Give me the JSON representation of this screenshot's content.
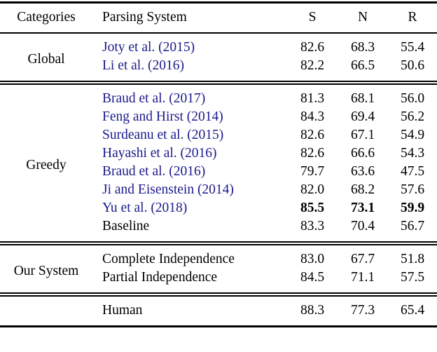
{
  "meta": {
    "background_color": "#ffffff",
    "text_color": "#000000",
    "citation_color": "#1a1a8c"
  },
  "table": {
    "columns": [
      "Categories",
      "Parsing System",
      "S",
      "N",
      "R"
    ],
    "sections": [
      {
        "category": "Global",
        "rows": [
          {
            "system": "Joty et al. (2015)",
            "cite": true,
            "s": "82.6",
            "n": "68.3",
            "r": "55.4"
          },
          {
            "system": "Li et al. (2016)",
            "cite": true,
            "s": "82.2",
            "n": "66.5",
            "r": "50.6"
          }
        ]
      },
      {
        "category": "Greedy",
        "rows": [
          {
            "system": "Braud et al. (2017)",
            "cite": true,
            "s": "81.3",
            "n": "68.1",
            "r": "56.0"
          },
          {
            "system": "Feng and Hirst (2014)",
            "cite": true,
            "s": "84.3",
            "n": "69.4",
            "r": "56.2"
          },
          {
            "system": "Surdeanu et al. (2015)",
            "cite": true,
            "s": "82.6",
            "n": "67.1",
            "r": "54.9"
          },
          {
            "system": "Hayashi et al. (2016)",
            "cite": true,
            "s": "82.6",
            "n": "66.6",
            "r": "54.3"
          },
          {
            "system": "Braud et al. (2016)",
            "cite": true,
            "s": "79.7",
            "n": "63.6",
            "r": "47.5"
          },
          {
            "system": "Ji and Eisenstein (2014)",
            "cite": true,
            "s": "82.0",
            "n": "68.2",
            "r": "57.6"
          },
          {
            "system": "Yu et al. (2018)",
            "cite": true,
            "bold": true,
            "s": "85.5",
            "n": "73.1",
            "r": "59.9"
          },
          {
            "system": "Baseline",
            "cite": false,
            "s": "83.3",
            "n": "70.4",
            "r": "56.7"
          }
        ]
      },
      {
        "category": "Our System",
        "rows": [
          {
            "system": "Complete Independence",
            "cite": false,
            "s": "83.0",
            "n": "67.7",
            "r": "51.8"
          },
          {
            "system": "Partial Independence",
            "cite": false,
            "s": "84.5",
            "n": "71.1",
            "r": "57.5"
          }
        ]
      },
      {
        "category": "",
        "rows": [
          {
            "system": "Human",
            "cite": false,
            "s": "88.3",
            "n": "77.3",
            "r": "65.4"
          }
        ]
      }
    ]
  }
}
